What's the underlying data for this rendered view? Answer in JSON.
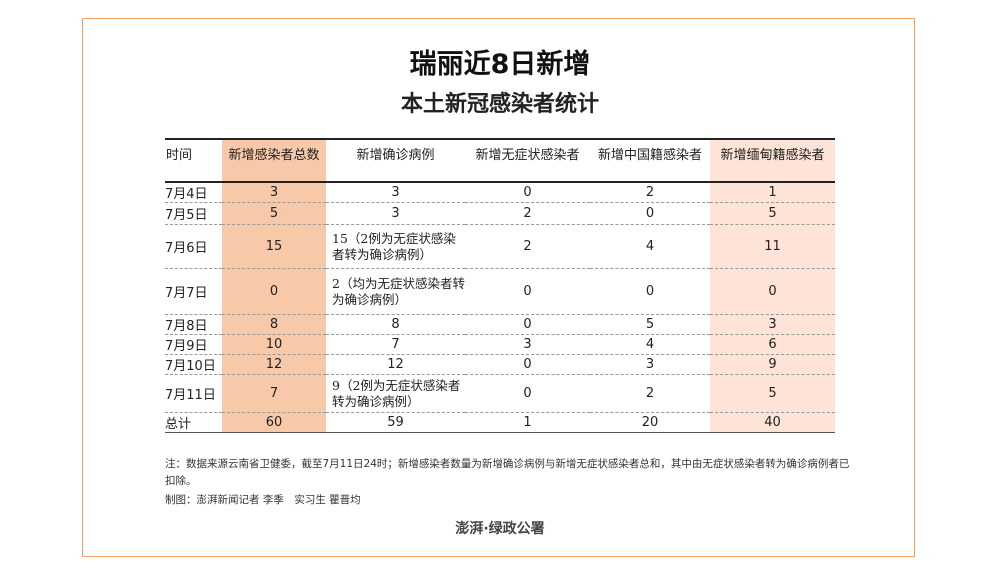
{
  "title": "瑞丽近8日新增",
  "subtitle": "本土新冠感染者统计",
  "headers": [
    "时间",
    "新增感染者总数",
    "新增确诊病例",
    "新增无症状感染者",
    "新增中国籍感染者",
    "新增缅甸籍感染者"
  ],
  "rows": [
    [
      "7月4日",
      "3",
      "3",
      "0",
      "2",
      "1"
    ],
    [
      "7月5日",
      "5",
      "3",
      "2",
      "0",
      "5"
    ],
    [
      "7月6日",
      "15",
      "15（2例为无症状感染者转为确诊病例）",
      "2",
      "4",
      "11"
    ],
    [
      "7月7日",
      "0",
      "2（均为无症状感染者转为确诊病例）",
      "0",
      "0",
      "0"
    ],
    [
      "7月8日",
      "8",
      "8",
      "0",
      "5",
      "3"
    ],
    [
      "7月9日",
      "10",
      "7",
      "3",
      "4",
      "6"
    ],
    [
      "7月10日",
      "12",
      "12",
      "0",
      "3",
      "9"
    ],
    [
      "7月11日",
      "7",
      "9（2例为无症状感染者转为确诊病例）",
      "0",
      "2",
      "5"
    ],
    [
      "总计",
      "60",
      "59",
      "1",
      "20",
      "40"
    ]
  ],
  "note": "注：数据来源云南省卫健委，截至7月11日24时；新增感染者数量为新增确诊病例与新增无症状感染者总和，其中由无症状感染者转为确诊病例者已扣除。",
  "credit": "制图：澎湃新闻记者 李季　实习生 瞿晋均",
  "logo": "澎湃·绿政公署",
  "colors": {
    "frame": "#f0a060",
    "total_column": "#f7c9a9",
    "myanmar_column": "#fde4d6"
  }
}
